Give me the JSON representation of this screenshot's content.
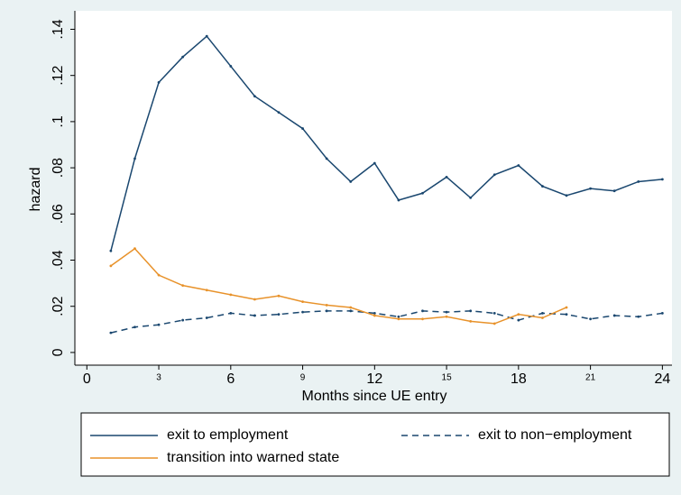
{
  "chart_data": {
    "type": "line",
    "xlabel": "Months since UE entry",
    "ylabel": "hazard",
    "x": [
      1,
      2,
      3,
      4,
      5,
      6,
      7,
      8,
      9,
      10,
      11,
      12,
      13,
      14,
      15,
      16,
      17,
      18,
      19,
      20,
      21,
      22,
      23,
      24
    ],
    "series": [
      {
        "name": "exit to employment",
        "color": "#1a476f",
        "dash": "solid",
        "values": [
          0.044,
          0.084,
          0.117,
          0.128,
          0.137,
          0.124,
          0.111,
          0.104,
          0.097,
          0.084,
          0.074,
          0.082,
          0.066,
          0.069,
          0.076,
          0.067,
          0.077,
          0.081,
          0.072,
          0.068,
          0.071,
          0.07,
          0.074,
          0.075
        ]
      },
      {
        "name": "exit to non−employment",
        "color": "#1a476f",
        "dash": "dashed",
        "values": [
          0.0085,
          0.011,
          0.012,
          0.014,
          0.015,
          0.017,
          0.016,
          0.0165,
          0.0175,
          0.018,
          0.018,
          0.017,
          0.0155,
          0.018,
          0.0175,
          0.018,
          0.017,
          0.014,
          0.017,
          0.0165,
          0.0145,
          0.016,
          0.0155,
          0.017
        ]
      },
      {
        "name": "transition into warned state",
        "color": "#e8922a",
        "dash": "solid",
        "values": [
          0.0375,
          0.045,
          0.0335,
          0.029,
          0.027,
          0.025,
          0.023,
          0.0245,
          0.022,
          0.0205,
          0.0195,
          0.016,
          0.0145,
          0.0145,
          0.0155,
          0.0135,
          0.0125,
          0.0165,
          0.015,
          0.0195,
          null,
          null,
          null,
          null
        ]
      }
    ],
    "xlim": [
      -0.5,
      24.4
    ],
    "xticks": [
      0,
      3,
      6,
      9,
      12,
      15,
      18,
      21,
      24
    ],
    "ylim": [
      -0.0055,
      0.148
    ],
    "yticks": [
      0,
      {
        "value": 0.02,
        "label": ".02"
      },
      {
        "value": 0.04,
        "label": ".04"
      },
      {
        "value": 0.06,
        "label": ".06"
      },
      {
        "value": 0.08,
        "label": ".08"
      },
      {
        "value": 0.1,
        "label": ".1"
      },
      {
        "value": 0.12,
        "label": ".12"
      },
      {
        "value": 0.14,
        "label": ".14"
      }
    ],
    "grid": false,
    "legend": "bottom"
  }
}
